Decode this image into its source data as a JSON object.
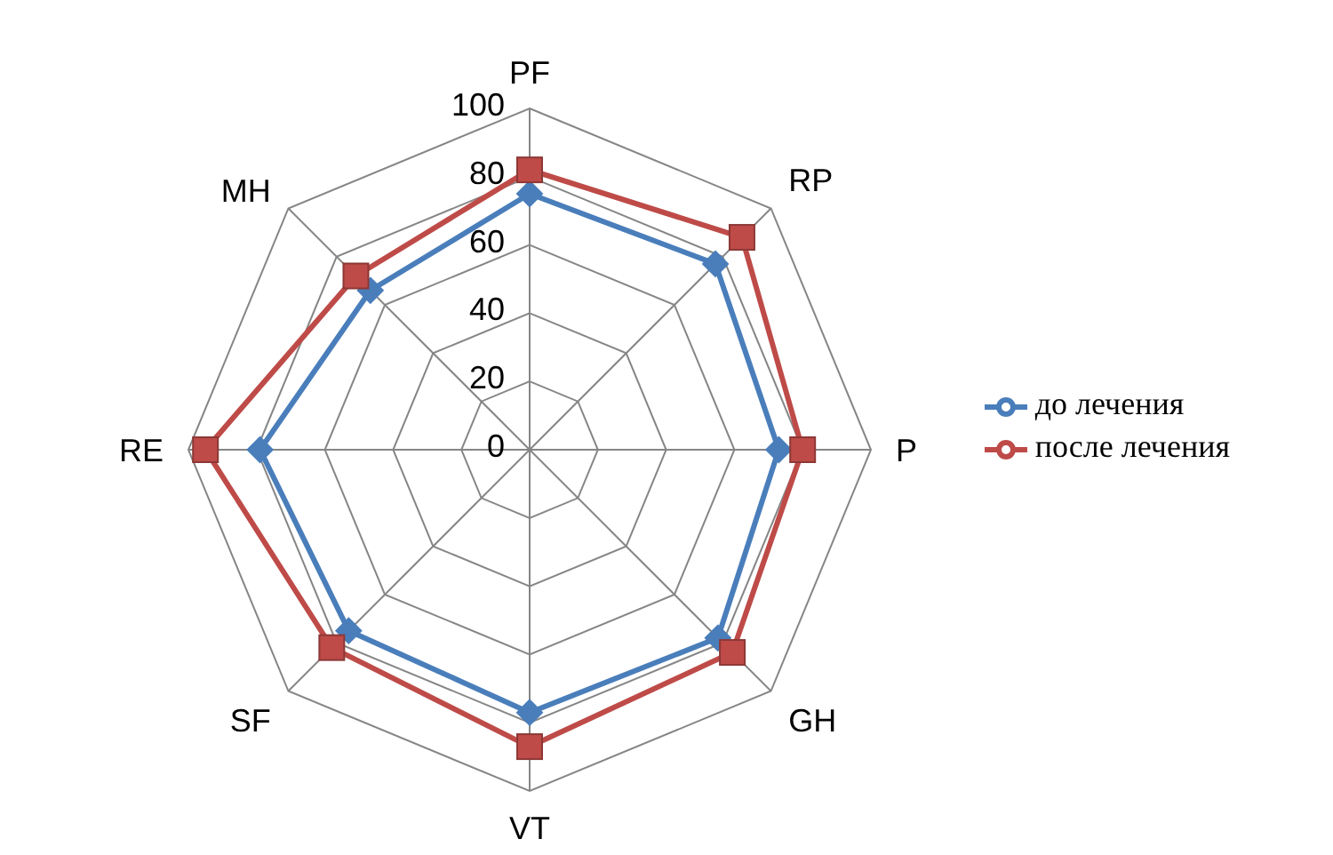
{
  "chart_data": {
    "type": "radar",
    "categories": [
      "PF",
      "RP",
      "P",
      "GH",
      "VT",
      "SF",
      "RE",
      "MH"
    ],
    "series": [
      {
        "name": "до лечения",
        "color": "#4a7ebb",
        "values": [
          75,
          77,
          73,
          78,
          77,
          75,
          79,
          66
        ]
      },
      {
        "name": "после лечения",
        "color": "#be4b48",
        "values": [
          82,
          88,
          80,
          84,
          87,
          82,
          95,
          72
        ]
      }
    ],
    "ylim": [
      0,
      100
    ],
    "yticks": [
      0,
      20,
      40,
      60,
      80,
      100
    ],
    "legend": "right",
    "grid": true,
    "marker": "diamond"
  }
}
